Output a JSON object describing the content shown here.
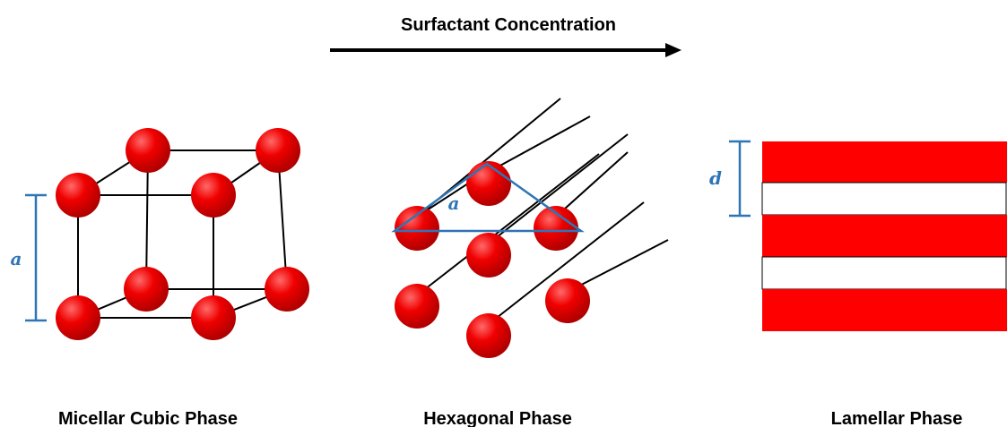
{
  "header": {
    "title": "Surfactant Concentration"
  },
  "phases": [
    {
      "label": "Micellar Cubic Phase",
      "dimension": "a"
    },
    {
      "label": "Hexagonal Phase",
      "dimension": "a"
    },
    {
      "label": "Lamellar Phase",
      "dimension": "d"
    }
  ]
}
